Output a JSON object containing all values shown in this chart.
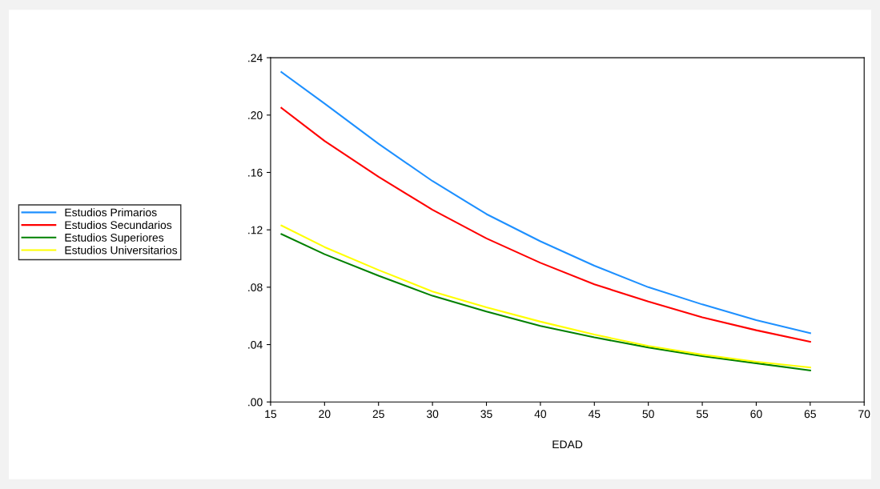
{
  "chart_data": {
    "type": "line",
    "xlabel": "EDAD",
    "x": [
      16,
      20,
      25,
      30,
      35,
      40,
      45,
      50,
      55,
      60,
      65
    ],
    "series": [
      {
        "name": "Estudios Primarios",
        "color": "#1e90ff",
        "values": [
          0.23,
          0.208,
          0.18,
          0.154,
          0.131,
          0.112,
          0.095,
          0.08,
          0.068,
          0.057,
          0.048
        ]
      },
      {
        "name": "Estudios Secundarios",
        "color": "#ff0000",
        "values": [
          0.205,
          0.182,
          0.157,
          0.134,
          0.114,
          0.097,
          0.082,
          0.07,
          0.059,
          0.05,
          0.042
        ]
      },
      {
        "name": "Estudios Superiores",
        "color": "#008000",
        "values": [
          0.117,
          0.103,
          0.088,
          0.074,
          0.063,
          0.053,
          0.045,
          0.038,
          0.032,
          0.027,
          0.022
        ]
      },
      {
        "name": "Estudios Universitarios",
        "color": "#ffff00",
        "values": [
          0.123,
          0.108,
          0.092,
          0.077,
          0.066,
          0.056,
          0.047,
          0.039,
          0.033,
          0.028,
          0.024
        ]
      }
    ],
    "xlim": [
      15,
      70
    ],
    "xticks": [
      15,
      20,
      25,
      30,
      35,
      40,
      45,
      50,
      55,
      60,
      65,
      70
    ],
    "ylim": [
      0,
      0.24
    ],
    "yticks": [
      {
        "value": 0,
        "label": ".00"
      },
      {
        "value": 0.04,
        "label": ".04"
      },
      {
        "value": 0.08,
        "label": ".08"
      },
      {
        "value": 0.12,
        "label": ".12"
      },
      {
        "value": 0.16,
        "label": ".16"
      },
      {
        "value": 0.2,
        "label": ".20"
      },
      {
        "value": 0.24,
        "label": ".24"
      }
    ],
    "grid": false,
    "legend": "left",
    "marker": "none",
    "line_style": "solid"
  }
}
